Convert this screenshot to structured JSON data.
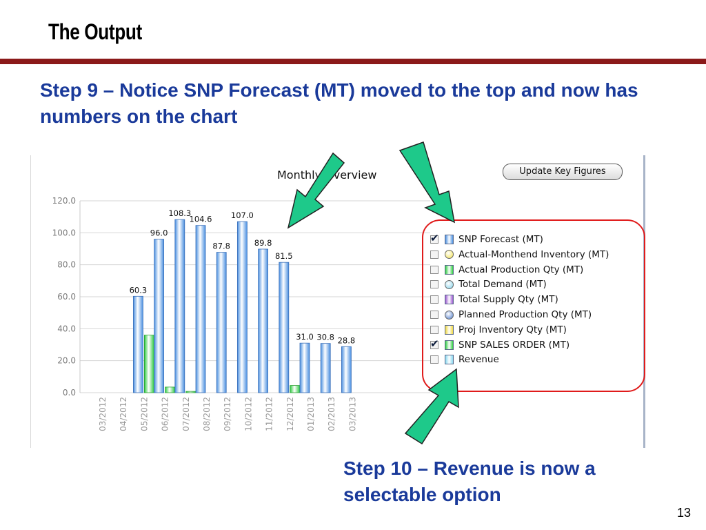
{
  "slide": {
    "title": "The Output",
    "step9": "Step 9 – Notice SNP Forecast (MT) moved to the top and now has numbers on the chart",
    "step10": "Step 10 – Revenue is now a selectable option",
    "page_number": "13"
  },
  "app": {
    "chart_title": "Monthly Overview",
    "update_button_label": "Update Key Figures"
  },
  "legend": {
    "items": [
      {
        "label": "SNP Forecast (MT)",
        "checked": true,
        "swatch": "bar",
        "color": "#4a8fe0"
      },
      {
        "label": "Actual-Monthend Inventory (MT)",
        "checked": false,
        "swatch": "dot",
        "color": "#f2e24a"
      },
      {
        "label": "Actual Production Qty (MT)",
        "checked": false,
        "swatch": "bar",
        "color": "#2ecc40"
      },
      {
        "label": "Total Demand (MT)",
        "checked": false,
        "swatch": "dot",
        "color": "#7fd0e8"
      },
      {
        "label": "Total Supply Qty (MT)",
        "checked": false,
        "swatch": "bar",
        "color": "#9b59d0"
      },
      {
        "label": "Planned Production Qty (MT)",
        "checked": false,
        "swatch": "dot",
        "color": "#4a78c8"
      },
      {
        "label": "Proj Inventory Qty (MT)",
        "checked": false,
        "swatch": "bar",
        "color": "#f0d840"
      },
      {
        "label": "SNP SALES ORDER (MT)",
        "checked": true,
        "swatch": "bar",
        "color": "#2ecc40"
      },
      {
        "label": "Revenue",
        "checked": false,
        "swatch": "bar",
        "color": "#8ad8f0"
      }
    ]
  },
  "chart_data": {
    "type": "bar",
    "title": "Monthly Overview",
    "categories": [
      "03/2012",
      "04/2012",
      "05/2012",
      "06/2012",
      "07/2012",
      "08/2012",
      "09/2012",
      "10/2012",
      "11/2012",
      "12/2012",
      "01/2013",
      "02/2013",
      "03/2013"
    ],
    "series": [
      {
        "name": "SNP Forecast (MT)",
        "color": "#4a8fe0",
        "values": [
          0,
          0,
          60.3,
          96.0,
          108.3,
          104.6,
          87.8,
          107.0,
          89.8,
          81.5,
          31.0,
          30.8,
          28.8
        ],
        "labels": [
          "",
          "",
          "60.3",
          "96.0",
          "108.3",
          "104.6",
          "87.8",
          "107.0",
          "89.8",
          "81.5",
          "31.0",
          "30.8",
          "28.8"
        ]
      },
      {
        "name": "SNP SALES ORDER (MT)",
        "color": "#2ecc40",
        "values": [
          0,
          0,
          36.0,
          3.5,
          0.8,
          0,
          0,
          0,
          0,
          4.5,
          0,
          0,
          0
        ]
      }
    ],
    "ylim": [
      0,
      120
    ],
    "yticks": [
      "0.0",
      "20.0",
      "40.0",
      "60.0",
      "80.0",
      "100.0",
      "120.0"
    ],
    "ytick_values": [
      0,
      20,
      40,
      60,
      80,
      100,
      120
    ],
    "grid": true
  }
}
